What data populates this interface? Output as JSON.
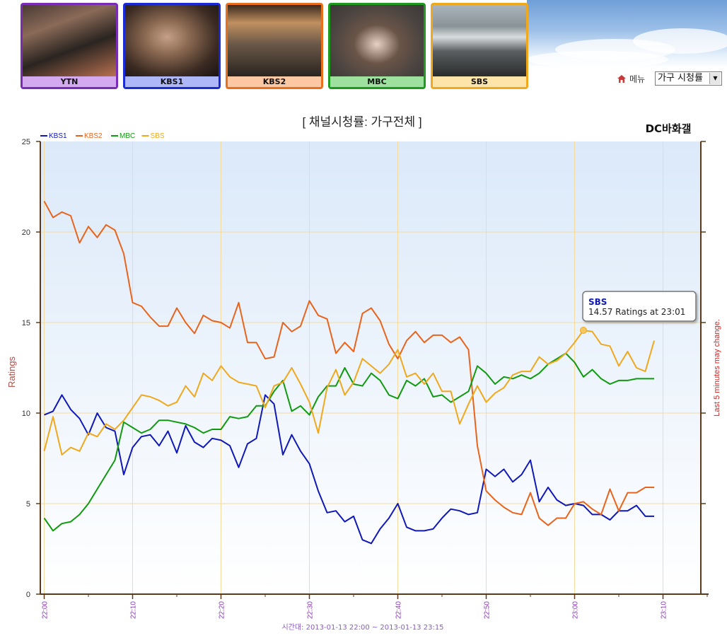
{
  "channels": [
    {
      "name": "YTN",
      "border": "#7a2cb6",
      "label_bg": "#d3a9f0"
    },
    {
      "name": "KBS1",
      "border": "#1a2ad4",
      "label_bg": "#aeb8f8"
    },
    {
      "name": "KBS2",
      "border": "#e8701c",
      "label_bg": "#fcc8a4"
    },
    {
      "name": "MBC",
      "border": "#1e9a1e",
      "label_bg": "#9ee09e"
    },
    {
      "name": "SBS",
      "border": "#f0a81c",
      "label_bg": "#fde4a8"
    }
  ],
  "toolbar": {
    "menu_label": "메뉴",
    "menu_icon": "house-icon",
    "select_value": "가구 시청률"
  },
  "chart_data": {
    "type": "line",
    "title": "[ 채널시청률: 가구전체 ]",
    "ylabel": "Ratings",
    "right_note": "Last 5 minutes may change.",
    "brand": "DC바화갤",
    "xlabel": "시간대: 2013-01-13 22:00 ~ 2013-01-13 23:15",
    "x_ticks": [
      "22:00",
      "22:10",
      "22:20",
      "22:30",
      "22:40",
      "22:50",
      "23:00",
      "23:10"
    ],
    "y_ticks": [
      "0",
      "5",
      "10",
      "15",
      "20",
      "25"
    ],
    "ylim": [
      0,
      25
    ],
    "x_start_minute": 0,
    "x_step_minutes": 1,
    "grid": true,
    "legend_position": "top-left",
    "series": [
      {
        "name": "KBS1",
        "color": "#1018b8",
        "values": [
          9.9,
          10.1,
          11.0,
          10.2,
          9.7,
          8.8,
          10.0,
          9.2,
          9.0,
          6.6,
          8.1,
          8.7,
          8.8,
          8.2,
          9.0,
          7.8,
          9.3,
          8.4,
          8.1,
          8.6,
          8.5,
          8.2,
          7.0,
          8.3,
          8.6,
          11.0,
          10.5,
          7.7,
          8.8,
          7.9,
          7.2,
          5.7,
          4.5,
          4.6,
          4.0,
          4.3,
          3.0,
          2.8,
          3.6,
          4.2,
          5.0,
          3.7,
          3.5,
          3.5,
          3.6,
          4.2,
          4.7,
          4.6,
          4.4,
          4.5,
          6.9,
          6.5,
          6.9,
          6.2,
          6.6,
          7.4,
          5.1,
          5.9,
          5.2,
          4.9,
          5.0,
          4.9,
          4.4,
          4.4,
          4.1,
          4.6,
          4.6,
          4.9,
          4.3,
          4.3
        ]
      },
      {
        "name": "KBS2",
        "color": "#e8641c",
        "values": [
          21.7,
          20.8,
          21.1,
          20.9,
          19.4,
          20.3,
          19.7,
          20.4,
          20.1,
          18.8,
          16.1,
          15.9,
          15.3,
          14.8,
          14.8,
          15.8,
          15.0,
          14.4,
          15.4,
          15.1,
          15.0,
          14.7,
          16.1,
          13.9,
          13.9,
          13.0,
          13.1,
          15.0,
          14.5,
          14.8,
          16.2,
          15.4,
          15.2,
          13.3,
          13.9,
          13.4,
          15.5,
          15.8,
          15.1,
          13.8,
          13.0,
          14.0,
          14.5,
          13.9,
          14.3,
          14.3,
          13.9,
          14.2,
          13.5,
          8.2,
          5.7,
          5.2,
          4.8,
          4.5,
          4.4,
          5.6,
          4.2,
          3.8,
          4.2,
          4.2,
          5.0,
          5.1,
          4.7,
          4.4,
          5.8,
          4.6,
          5.6,
          5.6,
          5.9,
          5.9
        ]
      },
      {
        "name": "MBC",
        "color": "#109a10",
        "values": [
          4.2,
          3.5,
          3.9,
          4.0,
          4.4,
          5.0,
          5.8,
          6.6,
          7.4,
          9.5,
          9.2,
          8.9,
          9.1,
          9.6,
          9.6,
          9.5,
          9.4,
          9.2,
          8.9,
          9.1,
          9.1,
          9.8,
          9.7,
          9.8,
          10.4,
          10.4,
          11.2,
          11.8,
          10.1,
          10.4,
          9.9,
          10.9,
          11.5,
          11.5,
          12.5,
          11.6,
          11.5,
          12.2,
          11.8,
          11.0,
          10.8,
          11.8,
          11.5,
          11.9,
          10.9,
          11.0,
          10.6,
          10.9,
          11.2,
          12.6,
          12.2,
          11.6,
          12.0,
          11.9,
          12.1,
          11.9,
          12.2,
          12.7,
          13.0,
          13.3,
          12.8,
          12.0,
          12.4,
          11.9,
          11.6,
          11.8,
          11.8,
          11.9,
          11.9,
          11.9
        ]
      },
      {
        "name": "SBS",
        "color": "#f0a81c",
        "values": [
          7.9,
          9.8,
          7.7,
          8.1,
          7.9,
          8.9,
          8.7,
          9.4,
          9.1,
          9.6,
          10.3,
          11.0,
          10.9,
          10.7,
          10.4,
          10.6,
          11.5,
          10.9,
          12.2,
          11.8,
          12.6,
          12.0,
          11.7,
          11.6,
          11.5,
          10.3,
          11.5,
          11.7,
          12.5,
          11.6,
          10.6,
          8.9,
          11.4,
          12.4,
          11.0,
          11.7,
          13.0,
          12.6,
          12.2,
          12.7,
          13.5,
          12.0,
          12.2,
          11.6,
          12.2,
          11.2,
          11.2,
          9.4,
          10.5,
          11.5,
          10.6,
          11.1,
          11.4,
          12.1,
          12.3,
          12.3,
          13.1,
          12.7,
          12.9,
          13.3,
          13.9,
          14.57,
          14.5,
          13.8,
          13.7,
          12.6,
          13.4,
          12.5,
          12.3,
          14.0
        ]
      }
    ],
    "tooltip": {
      "series": "SBS",
      "text": "14.57 Ratings at 23:01",
      "point_index": 61
    }
  }
}
